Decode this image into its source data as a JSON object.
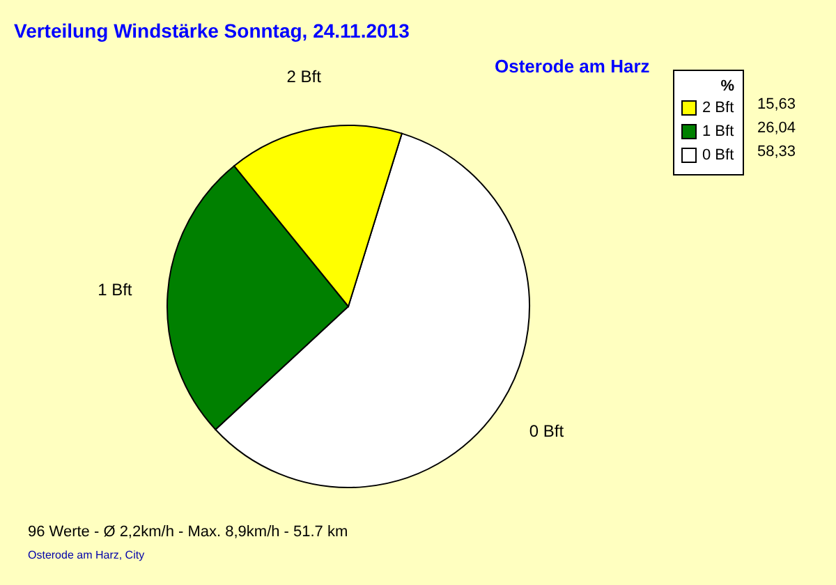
{
  "chart_data": {
    "type": "pie",
    "title": "Verteilung Windstärke  Sonntag, 24.11.2013",
    "subtitle": "Osterode am Harz",
    "legend_title": "%",
    "legend": "top right",
    "categories": [
      "0 Bft",
      "1 Bft",
      "2 Bft"
    ],
    "values": [
      58.33,
      26.04,
      15.63
    ],
    "value_labels": [
      "58,33",
      "26,04",
      "15,63"
    ],
    "colors": [
      "#ffffff",
      "#008000",
      "#ffff00"
    ],
    "annotations": [
      "96 Werte   -   Ø 2,2km/h  -  Max. 8,9km/h  -   51.7 km",
      "Osterode am Harz, City"
    ]
  }
}
